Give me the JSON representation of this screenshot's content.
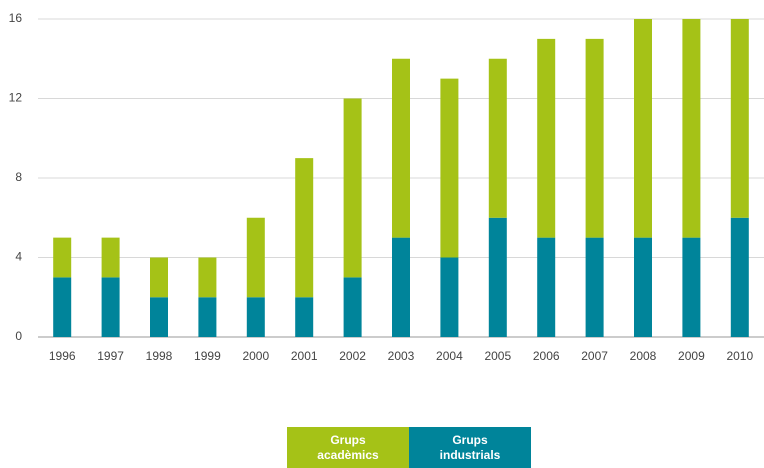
{
  "chart_data": {
    "type": "stacked_bar",
    "categories": [
      "1996",
      "1997",
      "1998",
      "1999",
      "2000",
      "2001",
      "2002",
      "2003",
      "2004",
      "2005",
      "2006",
      "2007",
      "2008",
      "2009",
      "2010"
    ],
    "series": [
      {
        "name": "Grups acadèmics",
        "color": "#a5c217",
        "values": [
          2,
          2,
          2,
          2,
          4,
          7,
          9,
          9,
          9,
          8,
          10,
          10,
          11,
          11,
          10
        ]
      },
      {
        "name": "Grups industrials",
        "color": "#00849a",
        "values": [
          3,
          3,
          2,
          2,
          2,
          2,
          3,
          5,
          4,
          6,
          5,
          5,
          5,
          5,
          6
        ]
      }
    ],
    "ylim": [
      0,
      16
    ],
    "yticks": [
      0,
      4,
      8,
      12,
      16
    ],
    "grid": true
  }
}
